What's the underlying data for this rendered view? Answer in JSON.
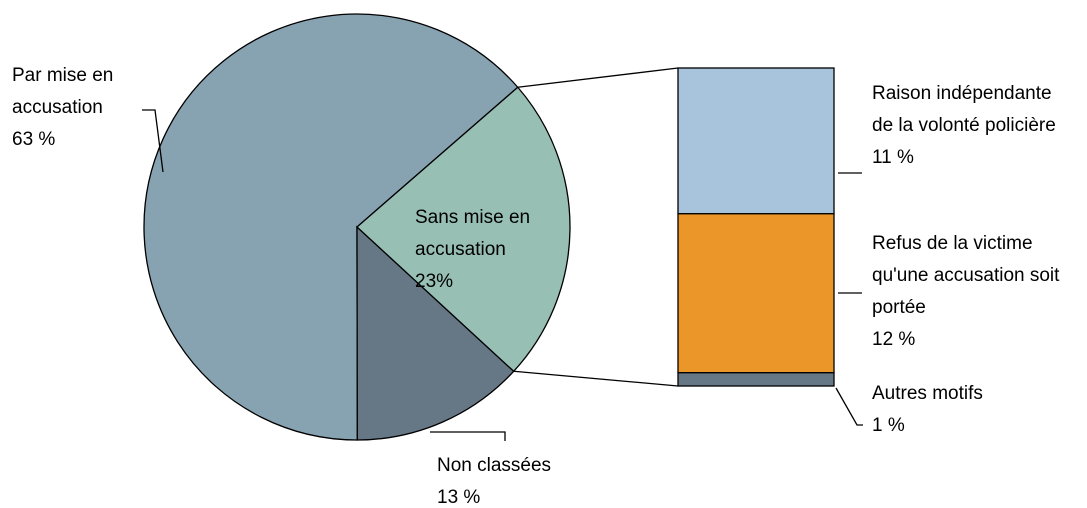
{
  "chart_data": {
    "type": "pie-of-bar",
    "pie": {
      "categories": [
        "Sans mise en accusation",
        "Non classées",
        "Par mise en accusation"
      ],
      "values": [
        23,
        13,
        63
      ],
      "value_labels": [
        "23%",
        "13 %",
        "63 %"
      ],
      "colors": [
        "#97bfb4",
        "#667886",
        "#87a3b2"
      ]
    },
    "bar": {
      "categories": [
        "Raison indépendante de la volonté policière",
        "Refus de la victime qu'une accusation soit portée",
        "Autres motifs"
      ],
      "values": [
        11,
        12,
        1
      ],
      "value_labels": [
        "11 %",
        "12 %",
        "1 %"
      ],
      "colors": [
        "#a7c4dc",
        "#ea9628",
        "#667886"
      ]
    }
  }
}
